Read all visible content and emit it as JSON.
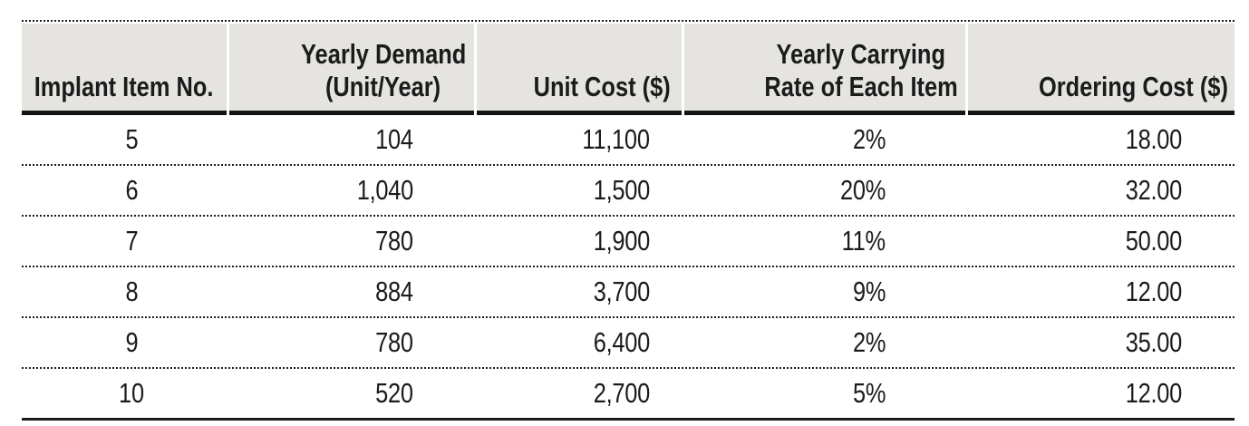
{
  "table": {
    "columns": [
      {
        "id": "implant-item-no",
        "lines": [
          "Implant Item No.",
          ""
        ]
      },
      {
        "id": "yearly-demand",
        "lines": [
          "Yearly Demand",
          "(Unit/Year)"
        ]
      },
      {
        "id": "unit-cost",
        "lines": [
          "Unit Cost ($)",
          ""
        ]
      },
      {
        "id": "carrying-rate",
        "lines": [
          "Yearly Carrying",
          "Rate of Each Item"
        ]
      },
      {
        "id": "ordering-cost",
        "lines": [
          "Ordering Cost ($)",
          ""
        ]
      }
    ],
    "rows": [
      {
        "cells": [
          "5",
          "104",
          "11,100",
          "2%",
          "18.00"
        ]
      },
      {
        "cells": [
          "6",
          "1,040",
          "1,500",
          "20%",
          "32.00"
        ]
      },
      {
        "cells": [
          "7",
          "780",
          "1,900",
          "11%",
          "50.00"
        ]
      },
      {
        "cells": [
          "8",
          "884",
          "3,700",
          "9%",
          "12.00"
        ]
      },
      {
        "cells": [
          "9",
          "780",
          "6,400",
          "2%",
          "35.00"
        ]
      },
      {
        "cells": [
          "10",
          "520",
          "2,700",
          "5%",
          "12.00"
        ]
      }
    ]
  },
  "colors": {
    "header_bg": "#e5e4e1",
    "text": "#1b1b1b",
    "rule": "#141414"
  }
}
